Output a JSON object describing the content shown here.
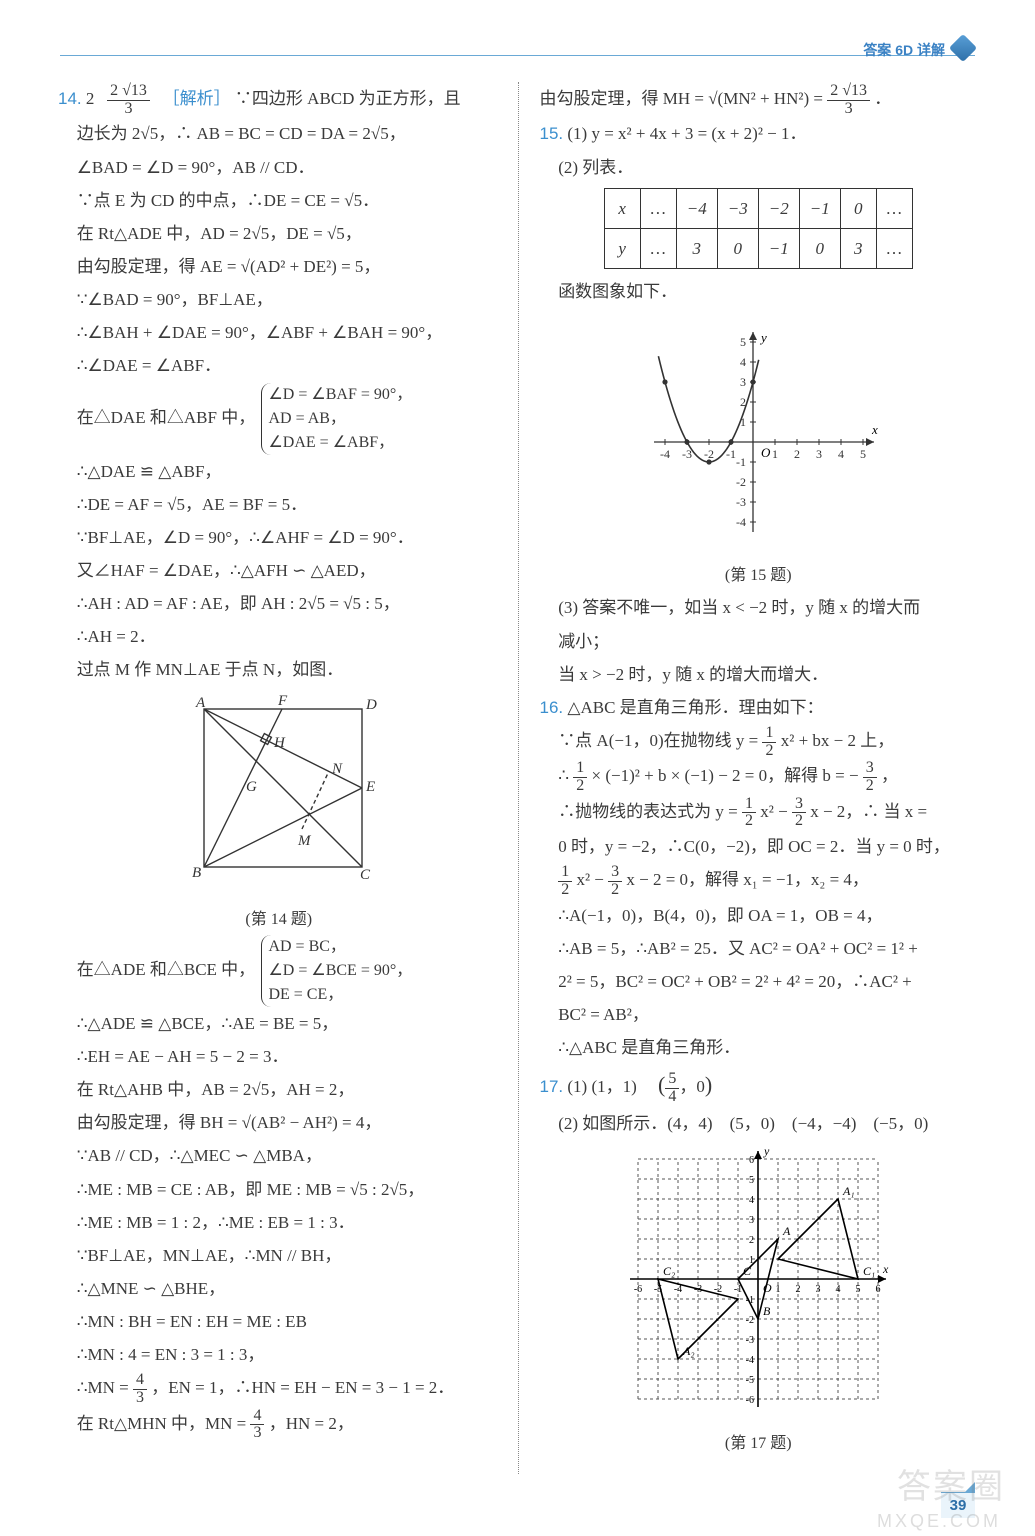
{
  "header": {
    "label": "答案 6D 详解"
  },
  "page_number": "39",
  "watermark": {
    "main": "答案圈",
    "sub": "MXQE.COM"
  },
  "q14": {
    "num": "14.",
    "ans_prefix": "2",
    "ans_frac_n": "2 √13",
    "ans_frac_d": "3",
    "ana_label": "［解析］",
    "l1": "∵四边形 ABCD 为正方形，且",
    "l2": "边长为 2√5，∴ AB = BC = CD = DA = 2√5，",
    "l3": "∠BAD = ∠D = 90°，AB // CD．",
    "l4": "∵点 E 为 CD 的中点，∴DE = CE = √5．",
    "l5": "在 Rt△ADE 中，AD = 2√5，DE = √5，",
    "l6": "由勾股定理，得 AE = √(AD² + DE²) = 5，",
    "l7": "∵∠BAD = 90°，BF⊥AE，",
    "l8": "∴∠BAH + ∠DAE = 90°，∠ABF + ∠BAH = 90°，",
    "l9": "∴∠DAE = ∠ABF．",
    "l10a": "在△DAE 和△ABF 中，",
    "br1": "∠D = ∠BAF = 90°，",
    "br2": "AD = AB，",
    "br3": "∠DAE = ∠ABF，",
    "l11": "∴△DAE ≌ △ABF，",
    "l12": "∴DE = AF = √5，AE = BF = 5．",
    "l13": "∵BF⊥AE，∠D = 90°，∴∠AHF = ∠D = 90°．",
    "l14": "又∠HAF = ∠DAE，∴△AFH ∽ △AED，",
    "l15": "∴AH : AD = AF : AE，即 AH : 2√5 = √5 : 5，",
    "l16": "∴AH = 2．",
    "l17": "过点 M 作 MN⊥AE 于点 N，如图．",
    "figcap": "(第 14 题)",
    "l18a": "在△ADE 和△BCE 中，",
    "br4": "AD = BC，",
    "br5": "∠D = ∠BCE = 90°，",
    "br6": "DE = CE，",
    "l19": "∴△ADE ≌ △BCE，∴AE = BE = 5，",
    "l20": "∴EH = AE − AH = 5 − 2 = 3．",
    "l21": "在 Rt△AHB 中，AB = 2√5，AH = 2，",
    "l22": "由勾股定理，得 BH = √(AB² − AH²) = 4，",
    "l23": "∵AB // CD，∴△MEC ∽ △MBA，",
    "l24": "∴ME : MB = CE : AB，即 ME : MB = √5 : 2√5，",
    "l25": "∴ME : MB = 1 : 2，∴ME : EB = 1 : 3．",
    "l26": "∵BF⊥AE，MN⊥AE，∴MN // BH，",
    "l27": "∴△MNE ∽ △BHE，",
    "l28": "∴MN : BH = EN : EH = ME : EB",
    "l29": "∴MN : 4 = EN : 3 = 1 : 3，",
    "l30a": "∴MN = ",
    "l30fn": "4",
    "l30fd": "3",
    "l30b": "，EN = 1，∴HN = EH − EN = 3 − 1 = 2．",
    "l31a": "在 Rt△MHN 中，MN = ",
    "l31fn": "4",
    "l31fd": "3",
    "l31b": "，HN = 2，"
  },
  "q14r": {
    "l1a": "由勾股定理，得 MH = √(MN² + HN²) = ",
    "l1fn": "2 √13",
    "l1fd": "3",
    "l1b": "．"
  },
  "q15": {
    "num": "15.",
    "l1": "(1) y = x² + 4x + 3 = (x + 2)² − 1．",
    "l2": "(2) 列表．",
    "table": {
      "row_x": [
        "x",
        "…",
        "−4",
        "−3",
        "−2",
        "−1",
        "0",
        "…"
      ],
      "row_y": [
        "y",
        "…",
        "3",
        "0",
        "−1",
        "0",
        "3",
        "…"
      ]
    },
    "l3": "函数图象如下．",
    "figcap": "(第 15 题)",
    "l4": "(3) 答案不唯一，如当 x < −2 时，y 随 x 的增大而",
    "l5": "减小；",
    "l6": "当 x > −2 时，y 随 x 的增大而增大．",
    "chart": {
      "type": "line",
      "xlim": [
        -4.5,
        5.5
      ],
      "ylim": [
        -4.5,
        5.5
      ],
      "xticks": [
        -4,
        -3,
        -2,
        -1,
        1,
        2,
        3,
        4,
        5
      ],
      "yticks": [
        -4,
        -3,
        -2,
        -1,
        1,
        2,
        3,
        4,
        5
      ],
      "axis_color": "#333333",
      "curve_color": "#333333",
      "point_color": "#333333",
      "points_x": [
        -4,
        -3,
        -2,
        -1,
        0
      ],
      "points_y": [
        3,
        0,
        -1,
        0,
        3
      ]
    }
  },
  "q16": {
    "num": "16.",
    "l1": "△ABC 是直角三角形．理由如下：",
    "l2a": "∵点 A(−1，0)在抛物线 y = ",
    "l2fn": "1",
    "l2fd": "2",
    "l2b": " x² + bx − 2 上，",
    "l3a": "∴ ",
    "l3fn1": "1",
    "l3fd1": "2",
    "l3b": " × (−1)² + b × (−1) − 2 = 0，解得 b = − ",
    "l3fn2": "3",
    "l3fd2": "2",
    "l3c": "，",
    "l4a": "∴抛物线的表达式为 y = ",
    "l4f1n": "1",
    "l4f1d": "2",
    "l4b": " x² − ",
    "l4f2n": "3",
    "l4f2d": "2",
    "l4c": " x − 2，∴ 当 x =",
    "l5": "0 时，y = −2，∴C(0，−2)，即 OC = 2．当 y = 0 时，",
    "l6f1n": "1",
    "l6f1d": "2",
    "l6a": " x² − ",
    "l6f2n": "3",
    "l6f2d": "2",
    "l6b": " x − 2 = 0，解得 x₁ = −1，x₂ = 4，",
    "l7": "∴A(−1，0)，B(4，0)，即 OA = 1，OB = 4，",
    "l8": "∴AB = 5，∴AB² = 25．又 AC² = OA² + OC² = 1² +",
    "l9": "2² = 5，BC² = OC² + OB² = 2² + 4² = 20，∴AC² +",
    "l10": "BC² = AB²，",
    "l11": "∴△ABC 是直角三角形．"
  },
  "q17": {
    "num": "17.",
    "l1a": "(1) (1，1)　",
    "l1pn": "5",
    "l1pd": "4",
    "l1b": "( , 0 )",
    "l2": "(2) 如图所示．(4，4)　(5，0)　(−4，−4)　(−5，0)",
    "figcap": "(第 17 题)",
    "chart": {
      "type": "grid",
      "xlim": [
        -6.5,
        6.5
      ],
      "ylim": [
        -6.5,
        6.5
      ],
      "ticks": [
        -6,
        -5,
        -4,
        -3,
        -2,
        -1,
        1,
        2,
        3,
        4,
        5,
        6
      ],
      "grid_color": "#555555",
      "grid_dash": "3 3",
      "axis_color": "#000000",
      "tri1": {
        "pts": [
          [
            -1,
            0
          ],
          [
            1,
            2
          ],
          [
            0,
            -2
          ]
        ],
        "labels": [
          "C",
          "A",
          "B"
        ]
      },
      "tri2": {
        "pts": [
          [
            5,
            0
          ],
          [
            4,
            4
          ],
          [
            1,
            1
          ]
        ],
        "labels": [
          "C₁",
          "A₁",
          ""
        ]
      },
      "tri3": {
        "pts": [
          [
            -5,
            0
          ],
          [
            -4,
            -4
          ],
          [
            -1,
            -1
          ]
        ],
        "labels": [
          "C₂",
          "A₂",
          ""
        ]
      }
    }
  }
}
